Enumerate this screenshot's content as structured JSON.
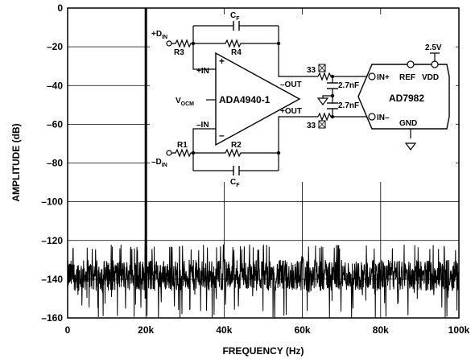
{
  "chart_data": {
    "type": "line",
    "title": "",
    "xlabel": "FREQUENCY (Hz)",
    "ylabel": "AMPLITUDE (dB)",
    "xlim": [
      0,
      100000
    ],
    "ylim": [
      -160,
      0
    ],
    "x_ticks": [
      0,
      20000,
      40000,
      60000,
      80000,
      100000
    ],
    "x_tick_labels": [
      "0",
      "20k",
      "40k",
      "60k",
      "80k",
      "100k"
    ],
    "y_ticks": [
      0,
      -20,
      -40,
      -60,
      -80,
      -100,
      -120,
      -140,
      -160
    ],
    "y_tick_labels": [
      "0",
      "–20",
      "–40",
      "–60",
      "–80",
      "–100",
      "–120",
      "–140",
      "–160"
    ],
    "grid": true,
    "series": [
      {
        "fundamental": {
          "x": 20000,
          "y": 0
        },
        "noise_floor_db": -138,
        "noise_top_db": -125,
        "noise_bottom_db": -157,
        "spurs": [
          {
            "x": 20000,
            "y": -120
          },
          {
            "x": 40000,
            "y": -128
          },
          {
            "x": 60000,
            "y": -128
          }
        ]
      }
    ]
  },
  "schematic": {
    "labels": {
      "pdin": "+D",
      "pdin_sub": "IN",
      "ndin": "–D",
      "ndin_sub": "IN",
      "r3": "R3",
      "r4": "R4",
      "r1": "R1",
      "r2": "R2",
      "cf_top": "C",
      "cf_top_sub": "F",
      "cf_bot": "C",
      "cf_bot_sub": "F",
      "pin": "+IN",
      "nin": "–IN",
      "plus_sign": "+",
      "minus_sign": "–",
      "vocm": "V",
      "vocm_sub": "OCM",
      "amp": "ADA4940-1",
      "nout": "–OUT",
      "pout": "+OUT",
      "r33_top": "33",
      "r33_bot": "33",
      "cap1": "2.7nF",
      "cap2": "2.7nF",
      "adc": "AD7982",
      "in_plus": "IN+",
      "ref": "REF",
      "vdd": "VDD",
      "in_minus": "IN–",
      "gnd": "GND",
      "v25": "2.5V"
    }
  },
  "colors": {
    "trace": "#000000",
    "grid": "#000000",
    "background": "#ffffff"
  }
}
